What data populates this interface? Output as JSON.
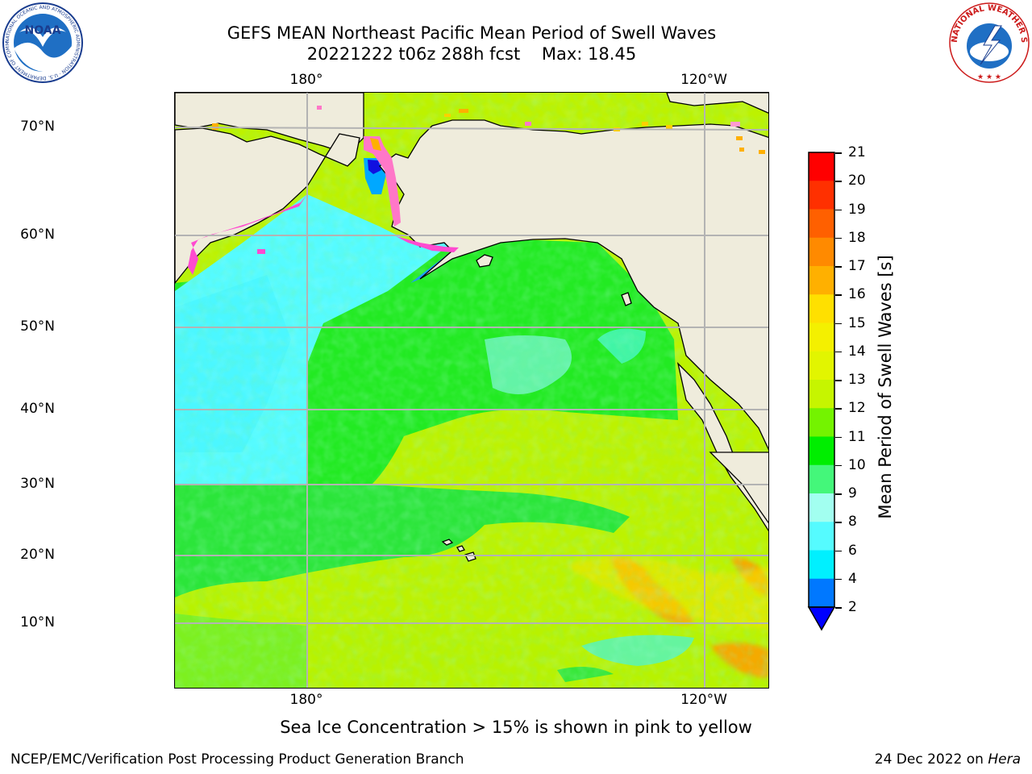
{
  "header": {
    "title_line1": "GEFS MEAN Northeast Pacific Mean Period of Swell Waves",
    "title_line2": "20221222 t06z 288h fcst    Max: 18.45"
  },
  "logos": {
    "left": "NOAA",
    "right": "NATIONAL WEATHER SERVICE",
    "left_ring_text": "NATIONAL OCEANIC AND ATMOSPHERIC ADMINISTRATION · U.S. DEPARTMENT OF COMMERCE"
  },
  "map": {
    "lon_labels_top": [
      "180°",
      "120°W"
    ],
    "lon_labels_bottom": [
      "180°",
      "120°W"
    ],
    "lat_labels": [
      "70°N",
      "60°N",
      "50°N",
      "40°N",
      "30°N",
      "20°N",
      "10°N"
    ],
    "land_color": "#efecdc",
    "grid_color": "#b3b3b3"
  },
  "colorbar": {
    "label": "Mean Period of Swell Waves [s]",
    "tick_labels": [
      "21",
      "20",
      "19",
      "18",
      "17",
      "16",
      "15",
      "14",
      "13",
      "12",
      "11",
      "10",
      "9",
      "8",
      "6",
      "4",
      "2"
    ],
    "colors_top_to_bottom": [
      "#ff0000",
      "#ff3000",
      "#ff6000",
      "#ff8a00",
      "#ffb000",
      "#ffe000",
      "#f4f000",
      "#e2f500",
      "#c6f500",
      "#74f300",
      "#00ee00",
      "#44f77a",
      "#a2fff0",
      "#55fbff",
      "#00f0ff",
      "#0078ff"
    ],
    "extend_color": "#0000ff"
  },
  "caption": "Sea Ice Concentration > 15% is shown in pink to yellow",
  "footer": {
    "left": "NCEP/EMC/Verification Post Processing Product Generation Branch",
    "right_date": "24 Dec 2022 on ",
    "right_host": "Hera"
  }
}
